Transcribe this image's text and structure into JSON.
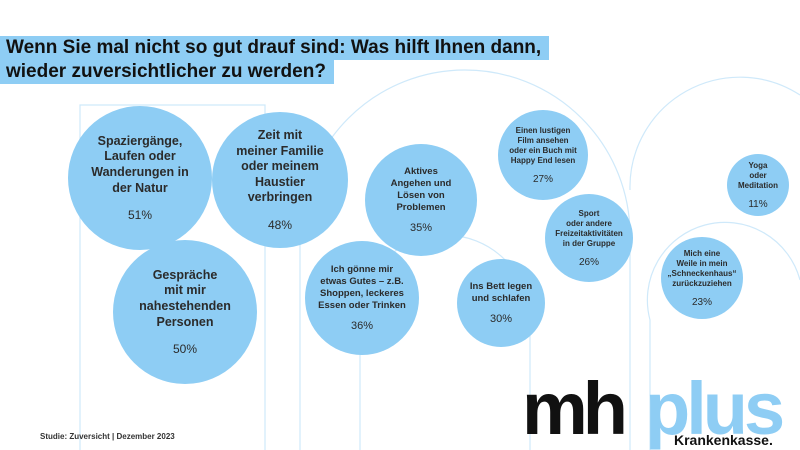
{
  "title": {
    "line1": "Wenn Sie mal nicht so gut drauf sind: Was hilft Ihnen dann,",
    "line2": "wieder zuversichtlicher zu werden?"
  },
  "footer": {
    "source": "Studie: Zuversicht | Dezember 2023"
  },
  "logo": {
    "mh": "mh",
    "plus": "plus",
    "tagline": "Krankenkasse."
  },
  "colors": {
    "bubble": "#8ecdf4",
    "title_bg": "#8ecdf4",
    "deco_line": "#cfe9fa"
  },
  "chart_data": {
    "type": "bubble",
    "unit": "%",
    "items": [
      {
        "label": "Spaziergänge,\nLaufen oder\nWanderungen in\nder Natur",
        "value": 51,
        "display": "51%"
      },
      {
        "label": "Gespräche\nmit mir\nnahestehenden\nPersonen",
        "value": 50,
        "display": "50%"
      },
      {
        "label": "Zeit mit\nmeiner Familie\noder meinem\nHaustier\nverbringen",
        "value": 48,
        "display": "48%"
      },
      {
        "label": "Ich gönne mir\netwas Gutes – z.B.\nShoppen, leckeres\nEssen oder Trinken",
        "value": 36,
        "display": "36%"
      },
      {
        "label": "Aktives\nAngehen und\nLösen von\nProblemen",
        "value": 35,
        "display": "35%"
      },
      {
        "label": "Ins Bett legen\nund schlafen",
        "value": 30,
        "display": "30%"
      },
      {
        "label": "Einen lustigen\nFilm ansehen\noder ein Buch mit\nHappy End lesen",
        "value": 27,
        "display": "27%"
      },
      {
        "label": "Sport\noder andere\nFreizeitaktivitäten\nin der Gruppe",
        "value": 26,
        "display": "26%"
      },
      {
        "label": "Mich eine\nWeile in mein\n„Schneckenhaus“\nzurückzuziehen",
        "value": 23,
        "display": "23%"
      },
      {
        "label": "Yoga\noder\nMeditation",
        "value": 11,
        "display": "11%"
      }
    ]
  }
}
